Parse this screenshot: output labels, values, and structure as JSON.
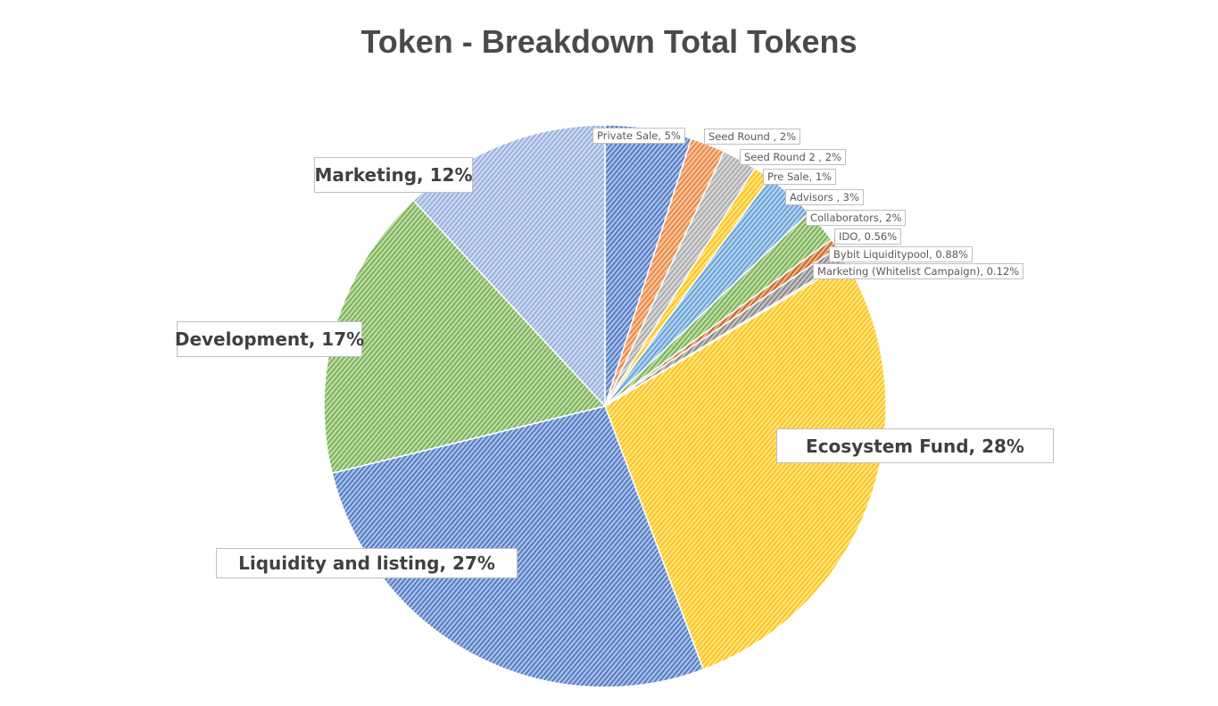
{
  "title": "Token - Breakdown Total Tokens",
  "chart_data": {
    "type": "pie",
    "title": "Token - Breakdown Total Tokens",
    "start_angle_deg": 0,
    "direction": "clockwise",
    "slices": [
      {
        "label": "Private Sale, 5%",
        "value": 5,
        "color": "#4472C4"
      },
      {
        "label": "Seed Round , 2%",
        "value": 2,
        "color": "#ED7D31"
      },
      {
        "label": "Seed Round 2 , 2%",
        "value": 2,
        "color": "#A5A5A5"
      },
      {
        "label": "Pre Sale, 1%",
        "value": 1,
        "color": "#FFC000"
      },
      {
        "label": "Advisors , 3%",
        "value": 3,
        "color": "#5B9BD5"
      },
      {
        "label": "Collaborators, 2%",
        "value": 2,
        "color": "#70AD47"
      },
      {
        "label": "IDO, 0.56%",
        "value": 0.56,
        "color": "#C55A11"
      },
      {
        "label": "Bybit Liquiditypool, 0.88%",
        "value": 0.88,
        "color": "#7F7F7F"
      },
      {
        "label": "Marketing (Whitelist Campaign), 0.12%",
        "value": 0.12,
        "color": "#BF9000"
      },
      {
        "label": "Ecosystem Fund, 28%",
        "value": 28,
        "color": "#FFC000"
      },
      {
        "label": "Liquidity and listing, 27%",
        "value": 27,
        "color": "#4472C4"
      },
      {
        "label": "Development, 17%",
        "value": 17,
        "color": "#70AD47"
      },
      {
        "label": "Marketing, 12%",
        "value": 12,
        "color": "#8FAADC"
      }
    ]
  }
}
